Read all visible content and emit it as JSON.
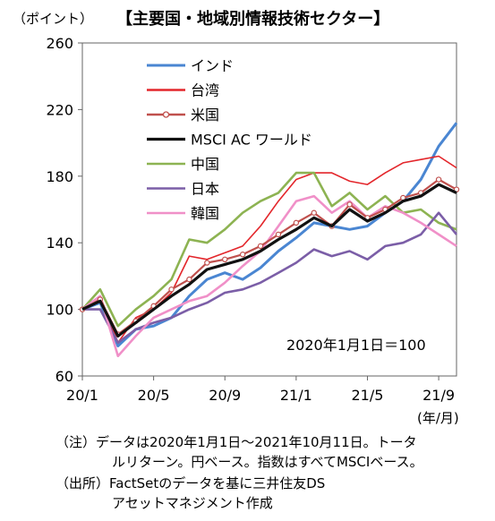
{
  "title": "【主要国・地域別情報技術セクター】",
  "y_unit_label": "（ポイント）",
  "x_unit_label": "(年/月)",
  "base_note": "2020年1月1日＝100",
  "notes": {
    "note_prefix": "（注）",
    "note_line1": "データは2020年1月1日～2021年10月11日。トータ",
    "note_line2": "ルリターン。円ベース。指数はすべてMSCIベース。",
    "source_prefix": "（出所）",
    "source_line1": "FactSetのデータを基に三井住友DS",
    "source_line2": "アセットマネジメント作成"
  },
  "chart_data": {
    "type": "line",
    "title": "【主要国・地域別情報技術セクター】",
    "ylabel": "（ポイント）",
    "xlabel": "(年/月)",
    "ylim": [
      60,
      260
    ],
    "yticks": [
      60,
      100,
      140,
      180,
      220,
      260
    ],
    "xlim": [
      "2020-01",
      "2021-10"
    ],
    "xticks": [
      {
        "label": "20/1",
        "x": 0
      },
      {
        "label": "20/5",
        "x": 4
      },
      {
        "label": "20/9",
        "x": 8
      },
      {
        "label": "21/1",
        "x": 12
      },
      {
        "label": "21/5",
        "x": 16
      },
      {
        "label": "21/9",
        "x": 20
      }
    ],
    "x_months": [
      "2020-01",
      "2020-02",
      "2020-03",
      "2020-04",
      "2020-05",
      "2020-06",
      "2020-07",
      "2020-08",
      "2020-09",
      "2020-10",
      "2020-11",
      "2020-12",
      "2021-01",
      "2021-02",
      "2021-03",
      "2021-04",
      "2021-05",
      "2021-06",
      "2021-07",
      "2021-08",
      "2021-09",
      "2021-10"
    ],
    "grid": false,
    "legend_position": "top-left",
    "series": [
      {
        "name": "インド",
        "color": "#4a86d2",
        "width": 3.0,
        "values": [
          100,
          104,
          78,
          88,
          90,
          95,
          108,
          118,
          122,
          118,
          125,
          135,
          143,
          152,
          150,
          148,
          150,
          158,
          165,
          178,
          198,
          212
        ]
      },
      {
        "name": "台湾",
        "color": "#e3262b",
        "width": 1.6,
        "values": [
          100,
          108,
          80,
          95,
          100,
          110,
          132,
          130,
          134,
          138,
          150,
          165,
          178,
          182,
          182,
          177,
          175,
          182,
          188,
          190,
          192,
          185
        ]
      },
      {
        "name": "米国",
        "color": "#c0504d",
        "width": 2.2,
        "marker": "circle",
        "values": [
          100,
          106,
          85,
          93,
          102,
          112,
          118,
          128,
          130,
          133,
          138,
          145,
          152,
          158,
          150,
          163,
          155,
          160,
          167,
          170,
          178,
          172
        ]
      },
      {
        "name": "MSCI AC ワールド",
        "color": "#111111",
        "width": 3.2,
        "values": [
          100,
          105,
          84,
          92,
          100,
          108,
          115,
          124,
          127,
          130,
          135,
          142,
          148,
          155,
          150,
          160,
          153,
          158,
          165,
          168,
          175,
          170
        ]
      },
      {
        "name": "中国",
        "color": "#8db352",
        "width": 2.6,
        "values": [
          100,
          112,
          90,
          100,
          108,
          118,
          142,
          140,
          148,
          158,
          165,
          170,
          182,
          182,
          162,
          170,
          160,
          168,
          158,
          160,
          152,
          148
        ]
      },
      {
        "name": "日本",
        "color": "#7b5ea7",
        "width": 2.6,
        "values": [
          100,
          100,
          80,
          88,
          92,
          95,
          100,
          104,
          110,
          112,
          116,
          122,
          128,
          136,
          132,
          135,
          130,
          138,
          140,
          145,
          158,
          145
        ]
      },
      {
        "name": "韓国",
        "color": "#f090c8",
        "width": 2.6,
        "values": [
          100,
          108,
          72,
          84,
          95,
          100,
          105,
          108,
          116,
          126,
          135,
          150,
          165,
          168,
          158,
          165,
          155,
          162,
          158,
          152,
          145,
          138
        ]
      }
    ]
  }
}
